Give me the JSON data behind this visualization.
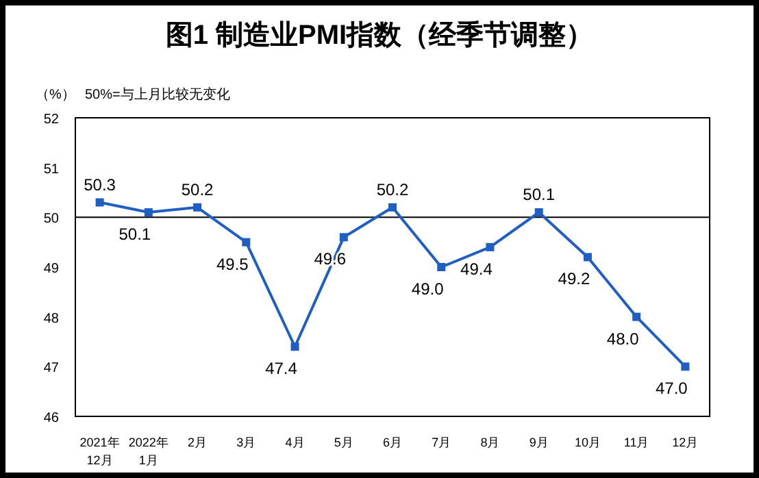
{
  "chart_data": {
    "type": "line",
    "title": "图1 制造业PMI指数（经季节调整）",
    "ylabel": "（%）",
    "annotations": [
      "50%=与上月比较无变化"
    ],
    "categories": [
      "2021年\n12月",
      "2022年\n1月",
      "2月",
      "3月",
      "4月",
      "5月",
      "6月",
      "7月",
      "8月",
      "9月",
      "10月",
      "11月",
      "12月"
    ],
    "series": [
      {
        "color": "#1f5fc4",
        "values": [
          50.3,
          50.1,
          50.2,
          49.5,
          47.4,
          49.6,
          50.2,
          49.0,
          49.4,
          50.1,
          49.2,
          48.0,
          47.0
        ]
      }
    ],
    "ylim": [
      46,
      52
    ],
    "yticks": [
      46,
      47,
      48,
      49,
      50,
      51,
      52
    ],
    "value_labels": [
      "50.3",
      "50.1",
      "50.2",
      "49.5",
      "47.4",
      "49.6",
      "50.2",
      "49.0",
      "49.4",
      "50.1",
      "49.2",
      "48.0",
      "47.0"
    ],
    "ref_lines": [
      {
        "axis": "y",
        "value": 50,
        "color": "#000000"
      }
    ],
    "marker": "square",
    "line_style": "solid",
    "grid": false
  }
}
